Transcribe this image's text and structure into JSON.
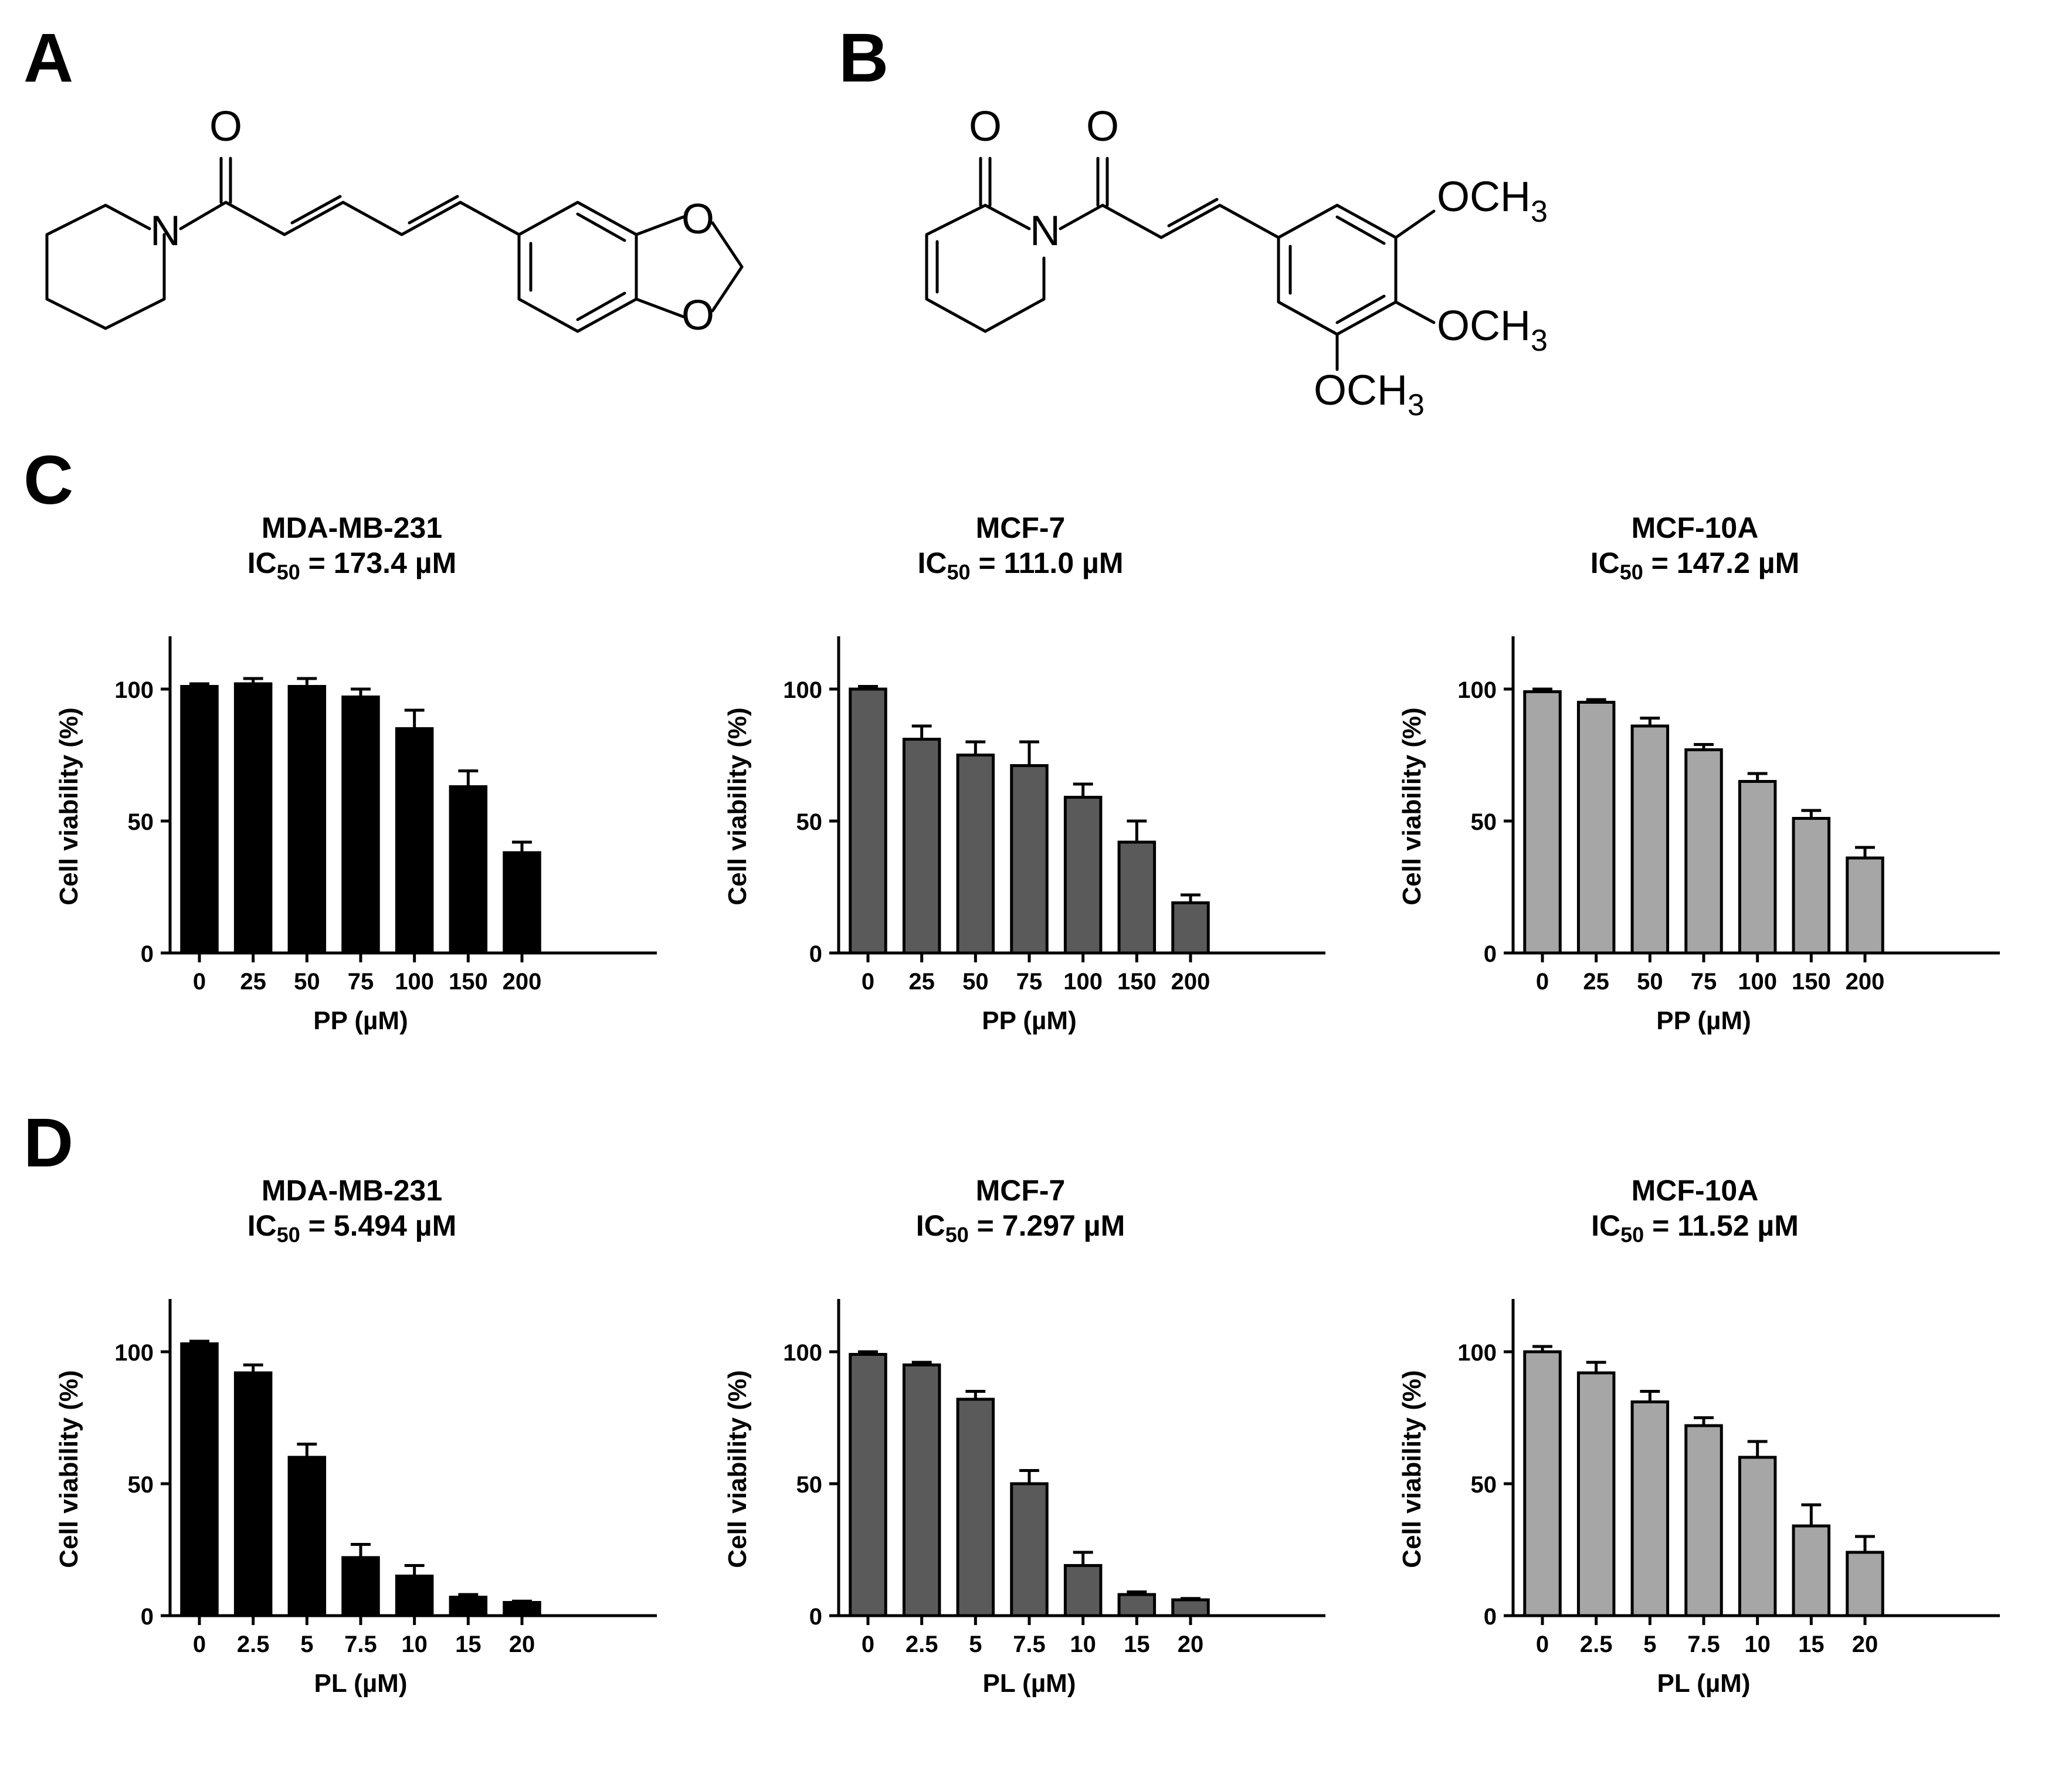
{
  "panels": {
    "A": "A",
    "B": "B",
    "C": "C",
    "D": "D"
  },
  "chem_A": {
    "atoms": {
      "o_top": "O",
      "n": "N",
      "o_ring1": "O",
      "o_ring2": "O"
    }
  },
  "chem_B": {
    "atoms": {
      "o1": "O",
      "o2": "O",
      "n": "N"
    },
    "substituents": {
      "och3_label": "OCH",
      "och3_sub": "3"
    }
  },
  "charts": [
    {
      "line1": "MDA-MB-231",
      "ic_prefix": "IC",
      "ic_sub": "50",
      "ic_value": " = 173.4 µM",
      "fill": "#000000"
    },
    {
      "line1": "MCF-7",
      "ic_prefix": "IC",
      "ic_sub": "50",
      "ic_value": " = 111.0 µM",
      "fill": "#5a5a5a"
    },
    {
      "line1": "MCF-10A",
      "ic_prefix": "IC",
      "ic_sub": "50",
      "ic_value": " = 147.2 µM",
      "fill": "#a6a6a6"
    },
    {
      "line1": "MDA-MB-231",
      "ic_prefix": "IC",
      "ic_sub": "50",
      "ic_value": " = 5.494 µM",
      "fill": "#000000"
    },
    {
      "line1": "MCF-7",
      "ic_prefix": "IC",
      "ic_sub": "50",
      "ic_value": " = 7.297 µM",
      "fill": "#5a5a5a"
    },
    {
      "line1": "MCF-10A",
      "ic_prefix": "IC",
      "ic_sub": "50",
      "ic_value": " = 11.52 µM",
      "fill": "#a6a6a6"
    }
  ],
  "chart_data": [
    {
      "type": "bar",
      "title": "MDA-MB-231 IC50 = 173.4 µM",
      "categories": [
        "0",
        "25",
        "50",
        "75",
        "100",
        "150",
        "200"
      ],
      "values": [
        101,
        102,
        101,
        97,
        85,
        63,
        38
      ],
      "errors": [
        1,
        2,
        3,
        3,
        7,
        6,
        4
      ],
      "xlabel": "PP (µM)",
      "ylabel": "Cell viability (%)",
      "ylim": [
        0,
        120
      ],
      "yticks": [
        "0",
        "50",
        "100"
      ]
    },
    {
      "type": "bar",
      "title": "MCF-7 IC50 = 111.0 µM",
      "categories": [
        "0",
        "25",
        "50",
        "75",
        "100",
        "150",
        "200"
      ],
      "values": [
        100,
        81,
        75,
        71,
        59,
        42,
        19
      ],
      "errors": [
        1,
        5,
        5,
        9,
        5,
        8,
        3
      ],
      "xlabel": "PP (µM)",
      "ylabel": "Cell viability (%)",
      "ylim": [
        0,
        120
      ],
      "yticks": [
        "0",
        "50",
        "100"
      ]
    },
    {
      "type": "bar",
      "title": "MCF-10A IC50 = 147.2 µM",
      "categories": [
        "0",
        "25",
        "50",
        "75",
        "100",
        "150",
        "200"
      ],
      "values": [
        99,
        95,
        86,
        77,
        65,
        51,
        36
      ],
      "errors": [
        1,
        1,
        3,
        2,
        3,
        3,
        4
      ],
      "xlabel": "PP (µM)",
      "ylabel": "Cell viability (%)",
      "ylim": [
        0,
        120
      ],
      "yticks": [
        "0",
        "50",
        "100"
      ]
    },
    {
      "type": "bar",
      "title": "MDA-MB-231 IC50 = 5.494 µM",
      "categories": [
        "0",
        "2.5",
        "5",
        "7.5",
        "10",
        "15",
        "20"
      ],
      "values": [
        103,
        92,
        60,
        22,
        15,
        7,
        5
      ],
      "errors": [
        1,
        3,
        5,
        5,
        4,
        1,
        0.5
      ],
      "xlabel": "PL (µM)",
      "ylabel": "Cell viability (%)",
      "ylim": [
        0,
        120
      ],
      "yticks": [
        "0",
        "50",
        "100"
      ]
    },
    {
      "type": "bar",
      "title": "MCF-7 IC50 = 7.297 µM",
      "categories": [
        "0",
        "2.5",
        "5",
        "7.5",
        "10",
        "15",
        "20"
      ],
      "values": [
        99,
        95,
        82,
        50,
        19,
        8,
        6
      ],
      "errors": [
        1,
        1,
        3,
        5,
        5,
        1,
        0.5
      ],
      "xlabel": "PL (µM)",
      "ylabel": "Cell viability (%)",
      "ylim": [
        0,
        120
      ],
      "yticks": [
        "0",
        "50",
        "100"
      ]
    },
    {
      "type": "bar",
      "title": "MCF-10A IC50 = 11.52 µM",
      "categories": [
        "0",
        "2.5",
        "5",
        "7.5",
        "10",
        "15",
        "20"
      ],
      "values": [
        100,
        92,
        81,
        72,
        60,
        34,
        24
      ],
      "errors": [
        2,
        4,
        4,
        3,
        6,
        8,
        6
      ],
      "xlabel": "PL (µM)",
      "ylabel": "Cell viability (%)",
      "ylim": [
        0,
        120
      ],
      "yticks": [
        "0",
        "50",
        "100"
      ]
    }
  ]
}
